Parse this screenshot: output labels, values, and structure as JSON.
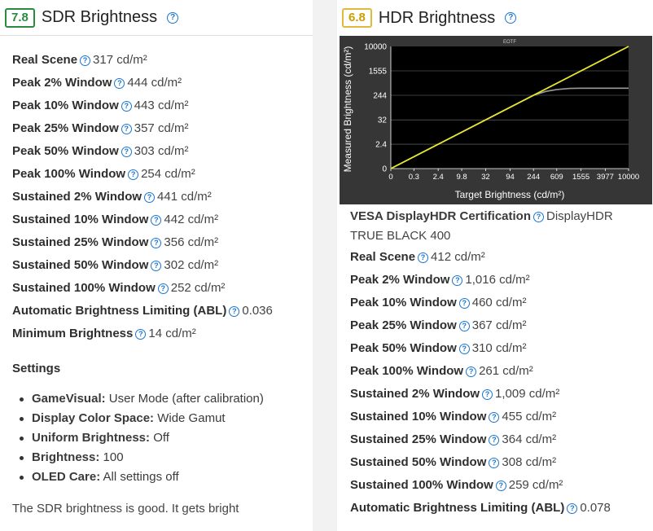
{
  "sdr": {
    "score": "7.8",
    "title": "SDR Brightness",
    "rows": [
      {
        "label": "Real Scene",
        "value": "317 cd/m²"
      },
      {
        "label": "Peak 2% Window",
        "value": "444 cd/m²"
      },
      {
        "label": "Peak 10% Window",
        "value": "443 cd/m²"
      },
      {
        "label": "Peak 25% Window",
        "value": "357 cd/m²"
      },
      {
        "label": "Peak 50% Window",
        "value": "303 cd/m²"
      },
      {
        "label": "Peak 100% Window",
        "value": "254 cd/m²"
      },
      {
        "label": "Sustained 2% Window",
        "value": "441 cd/m²"
      },
      {
        "label": "Sustained 10% Window",
        "value": "442 cd/m²"
      },
      {
        "label": "Sustained 25% Window",
        "value": "356 cd/m²"
      },
      {
        "label": "Sustained 50% Window",
        "value": "302 cd/m²"
      },
      {
        "label": "Sustained 100% Window",
        "value": "252 cd/m²"
      },
      {
        "label": "Automatic Brightness Limiting (ABL)",
        "value": "0.036"
      },
      {
        "label": "Minimum Brightness",
        "value": "14 cd/m²"
      }
    ],
    "settings_title": "Settings",
    "settings": [
      {
        "label": "GameVisual:",
        "value": "User Mode (after calibration)"
      },
      {
        "label": "Display Color Space:",
        "value": "Wide Gamut"
      },
      {
        "label": "Uniform Brightness:",
        "value": "Off"
      },
      {
        "label": "Brightness:",
        "value": "100"
      },
      {
        "label": "OLED Care:",
        "value": "All settings off"
      }
    ],
    "paragraph": "The SDR brightness is good. It gets bright"
  },
  "hdr": {
    "score": "6.8",
    "title": "HDR Brightness",
    "certification": {
      "label": "VESA DisplayHDR Certification",
      "value": "DisplayHDR TRUE BLACK 400"
    },
    "rows": [
      {
        "label": "Real Scene",
        "value": "412 cd/m²"
      },
      {
        "label": "Peak 2% Window",
        "value": "1,016 cd/m²"
      },
      {
        "label": "Peak 10% Window",
        "value": "460 cd/m²"
      },
      {
        "label": "Peak 25% Window",
        "value": "367 cd/m²"
      },
      {
        "label": "Peak 50% Window",
        "value": "310 cd/m²"
      },
      {
        "label": "Peak 100% Window",
        "value": "261 cd/m²"
      },
      {
        "label": "Sustained 2% Window",
        "value": "1,009 cd/m²"
      },
      {
        "label": "Sustained 10% Window",
        "value": "455 cd/m²"
      },
      {
        "label": "Sustained 25% Window",
        "value": "364 cd/m²"
      },
      {
        "label": "Sustained 50% Window",
        "value": "308 cd/m²"
      },
      {
        "label": "Sustained 100% Window",
        "value": "259 cd/m²"
      },
      {
        "label": "Automatic Brightness Limiting (ABL)",
        "value": "0.078"
      }
    ]
  },
  "colors": {
    "green": "#2b8a3e",
    "yellow": "#e2b93b",
    "help": "#1976d2",
    "chart_bg": "#363636",
    "target_line": "#e6e62e"
  },
  "chart_data": {
    "type": "line",
    "title": "EOTF",
    "xlabel": "Target Brightness (cd/m²)",
    "ylabel": "Measured Brightness (cd/m²)",
    "x_ticks": [
      "0",
      "0.3",
      "2.4",
      "9.8",
      "32",
      "94",
      "244",
      "609",
      "1555",
      "3977",
      "10000"
    ],
    "y_ticks": [
      "0",
      "2.4",
      "32",
      "244",
      "1555",
      "10000"
    ],
    "scale": "PQ",
    "series": [
      {
        "x": [
          0,
          0.3,
          2.4,
          9.8,
          32,
          94,
          244,
          400,
          609,
          1000,
          1555,
          3977,
          10000
        ],
        "y": [
          0,
          0.3,
          2.4,
          9.8,
          32,
          94,
          244,
          330,
          380,
          412,
          420,
          420,
          420
        ]
      },
      {
        "x": [
          0,
          10000
        ],
        "y": [
          0,
          10000
        ]
      }
    ]
  }
}
